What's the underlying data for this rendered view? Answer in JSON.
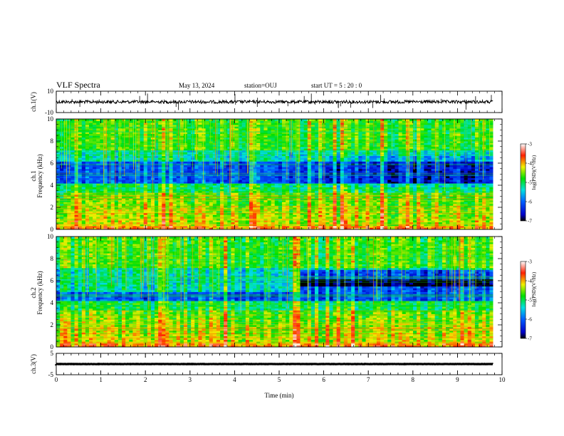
{
  "header": {
    "title": "VLF Spectra",
    "date": "May 13, 2024",
    "station": "station=OUJ",
    "start": "start  UT =   5  : 20 : 0"
  },
  "chart_data": [
    {
      "type": "line",
      "name": "ch1-waveform",
      "ylabel": "ch.1(V)",
      "ylim": [
        -10,
        10
      ],
      "yticks": [
        "10",
        "-10"
      ],
      "xlim": [
        0,
        10
      ]
    },
    {
      "type": "heatmap",
      "name": "ch1-spectrogram",
      "ylabel_line1": "ch.1",
      "ylabel_line2": "Frequency (kHz)",
      "ylim": [
        0,
        10
      ],
      "yticks": [
        "0",
        "2",
        "4",
        "6",
        "8",
        "10"
      ],
      "xlim": [
        0,
        10
      ],
      "colorbar": {
        "label": "log(PSD)(V²/Hz)",
        "range": [
          -7,
          -3
        ],
        "ticks": [
          "-3",
          "-4",
          "-5",
          "-6",
          "-7"
        ]
      }
    },
    {
      "type": "heatmap",
      "name": "ch2-spectrogram",
      "ylabel_line1": "ch.2",
      "ylabel_line2": "Frequency (kHz)",
      "ylim": [
        0,
        10
      ],
      "yticks": [
        "0",
        "2",
        "4",
        "6",
        "8",
        "10"
      ],
      "xlim": [
        0,
        10
      ],
      "colorbar": {
        "label": "log(PSD)(V²/Hz)",
        "range": [
          -7,
          -3
        ],
        "ticks": [
          "-3",
          "-4",
          "-5",
          "-6",
          "-7"
        ]
      }
    },
    {
      "type": "line",
      "name": "ch3-waveform",
      "ylabel": "ch.3(V)",
      "ylim": [
        -5,
        5
      ],
      "yticks": [
        "5",
        "-5"
      ],
      "xlim": [
        0,
        10
      ],
      "xlabel": "Time  (min)",
      "xticks": [
        "0",
        "1",
        "2",
        "3",
        "4",
        "5",
        "6",
        "7",
        "8",
        "9",
        "10"
      ],
      "data_end_min": 9.8,
      "level": 0
    }
  ]
}
